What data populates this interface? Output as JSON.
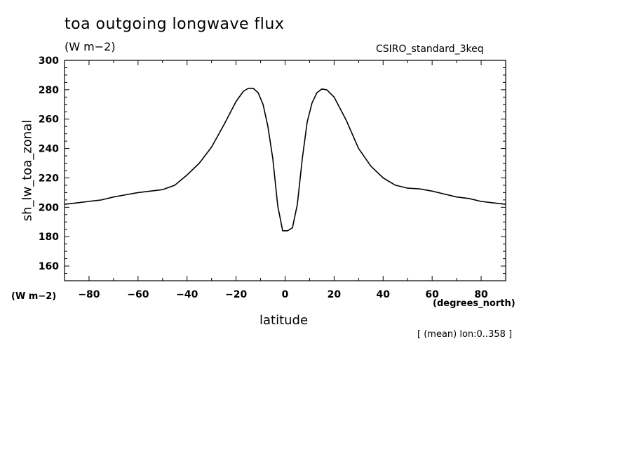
{
  "chart_data": {
    "type": "line",
    "title": "toa outgoing longwave flux",
    "units": "(W m−2)",
    "source_label": "CSIRO_standard_3keq",
    "xlabel": "latitude",
    "xunits": "(degrees_north)",
    "ylabel": "sh_lw_toa_zonal",
    "yunits": "(W m−2)",
    "note": "[ (mean) lon:0..358 ]",
    "xlim": [
      -90,
      90
    ],
    "ylim": [
      150,
      300
    ],
    "xticks": [
      -80,
      -60,
      -40,
      -20,
      0,
      20,
      40,
      60,
      80
    ],
    "yticks": [
      160,
      180,
      200,
      220,
      240,
      260,
      280,
      300
    ],
    "grid": false,
    "series": [
      {
        "x": [
          -90,
          -85,
          -80,
          -75,
          -70,
          -65,
          -60,
          -55,
          -50,
          -45,
          -40,
          -35,
          -30,
          -25,
          -20,
          -17,
          -15,
          -13,
          -11,
          -9,
          -7,
          -5,
          -3,
          -1,
          1,
          3,
          5,
          7,
          9,
          11,
          13,
          15,
          17,
          20,
          25,
          30,
          35,
          40,
          45,
          50,
          55,
          60,
          65,
          70,
          75,
          80,
          85,
          90
        ],
        "y": [
          202,
          203,
          204,
          205,
          207,
          208.5,
          210,
          211,
          212,
          215,
          222,
          230,
          241,
          256,
          272,
          279,
          281,
          281,
          278,
          270,
          255,
          233,
          201,
          184,
          184,
          186,
          202,
          233,
          258,
          271,
          278,
          280.5,
          280,
          275,
          259,
          240,
          228,
          220,
          215,
          213,
          212.5,
          211,
          209,
          207,
          206,
          204,
          203,
          202
        ]
      }
    ]
  }
}
